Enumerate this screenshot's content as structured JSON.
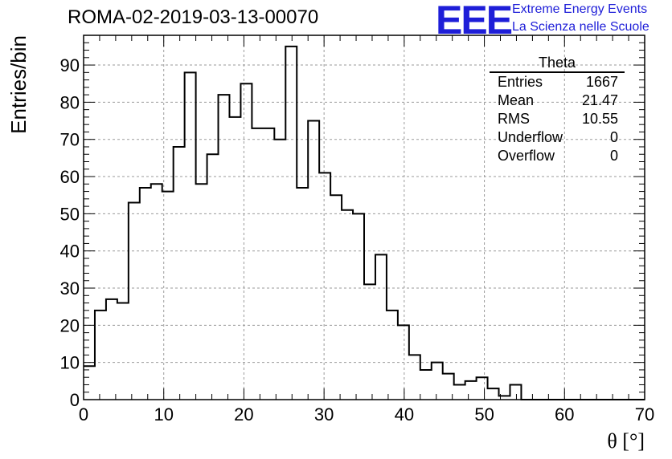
{
  "title": "ROMA-02-2019-03-13-00070",
  "logo": {
    "letters": "EEE",
    "line1": "Extreme Energy Events",
    "line2": "La Scienza nelle Scuole",
    "color": "#1e1ed8"
  },
  "stats": {
    "name": "Theta",
    "rows": [
      {
        "label": "Entries",
        "value": "1667"
      },
      {
        "label": "Mean",
        "value": "21.47"
      },
      {
        "label": "RMS",
        "value": "10.55"
      },
      {
        "label": "Underflow",
        "value": "0"
      },
      {
        "label": "Overflow",
        "value": "0"
      }
    ]
  },
  "chart_data": {
    "type": "bar",
    "histogram": true,
    "title": "ROMA-02-2019-03-13-00070",
    "xlabel": "θ [°]",
    "ylabel": "Entries/bin",
    "xlim": [
      0,
      70
    ],
    "ylim": [
      0,
      98
    ],
    "grid": true,
    "x_ticks": [
      0,
      10,
      20,
      30,
      40,
      50,
      60,
      70
    ],
    "y_ticks": [
      0,
      10,
      20,
      30,
      40,
      50,
      60,
      70,
      80,
      90
    ],
    "bin_width": 1.4,
    "bin_edges_start": 0,
    "values": [
      9,
      24,
      27,
      26,
      53,
      57,
      58,
      56,
      68,
      88,
      58,
      66,
      82,
      76,
      85,
      73,
      73,
      70,
      95,
      57,
      75,
      61,
      55,
      51,
      50,
      31,
      39,
      24,
      20,
      12,
      8,
      10,
      7,
      4,
      5,
      6,
      3,
      1,
      4,
      0,
      0,
      0,
      0,
      0,
      0,
      0,
      0,
      0,
      0,
      0
    ]
  }
}
